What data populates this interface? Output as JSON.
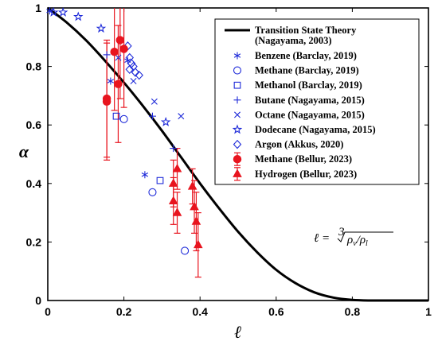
{
  "chart_data": {
    "type": "scatter",
    "xlabel": "ℓ",
    "ylabel": "α",
    "xlim": [
      0,
      1
    ],
    "ylim": [
      0,
      1
    ],
    "xticks": [
      "0",
      "0.2",
      "0.4",
      "0.6",
      "0.8",
      "1"
    ],
    "yticks": [
      "0",
      "0.2",
      "0.4",
      "0.6",
      "0.8",
      "1"
    ],
    "grid": false,
    "legend_position": "top-right",
    "annotation": "ℓ = ∛(ρv/ρl)",
    "curve": {
      "name": "Transition State Theory",
      "name_line2": "(Nagayama, 2003)",
      "color": "#000000",
      "points": [
        [
          0,
          1
        ],
        [
          0.05,
          0.95
        ],
        [
          0.1,
          0.89
        ],
        [
          0.15,
          0.82
        ],
        [
          0.2,
          0.745
        ],
        [
          0.25,
          0.665
        ],
        [
          0.3,
          0.58
        ],
        [
          0.35,
          0.49
        ],
        [
          0.4,
          0.4
        ],
        [
          0.45,
          0.315
        ],
        [
          0.5,
          0.235
        ],
        [
          0.55,
          0.165
        ],
        [
          0.6,
          0.105
        ],
        [
          0.65,
          0.06
        ],
        [
          0.7,
          0.028
        ],
        [
          0.75,
          0.01
        ],
        [
          0.8,
          0.002
        ],
        [
          0.85,
          0
        ],
        [
          0.9,
          0
        ],
        [
          0.95,
          0
        ],
        [
          1,
          0
        ]
      ]
    },
    "series": [
      {
        "name": "Benzene (Barclay, 2019)",
        "marker": "asterisk",
        "color": "#1f2bd9",
        "points": [
          [
            0.005,
            0.99
          ],
          [
            0.165,
            0.75
          ],
          [
            0.21,
            0.82
          ],
          [
            0.255,
            0.43
          ]
        ]
      },
      {
        "name": "Methane (Barclay, 2019)",
        "marker": "circle",
        "color": "#1f2bd9",
        "points": [
          [
            0.2,
            0.62
          ],
          [
            0.275,
            0.37
          ],
          [
            0.36,
            0.17
          ]
        ]
      },
      {
        "name": "Methanol (Barclay, 2019)",
        "marker": "square",
        "color": "#1f2bd9",
        "points": [
          [
            0.18,
            0.63
          ],
          [
            0.295,
            0.41
          ]
        ]
      },
      {
        "name": "Butane (Nagayama, 2015)",
        "marker": "plus",
        "color": "#1f2bd9",
        "points": [
          [
            0.155,
            0.84
          ],
          [
            0.275,
            0.63
          ],
          [
            0.33,
            0.52
          ]
        ]
      },
      {
        "name": "Octane (Nagayama, 2015)",
        "marker": "cross",
        "color": "#1f2bd9",
        "points": [
          [
            0.185,
            0.83
          ],
          [
            0.225,
            0.75
          ],
          [
            0.28,
            0.68
          ],
          [
            0.35,
            0.63
          ]
        ]
      },
      {
        "name": "Dodecane (Nagayama, 2015)",
        "marker": "star",
        "color": "#1f2bd9",
        "points": [
          [
            0.015,
            0.985
          ],
          [
            0.04,
            0.985
          ],
          [
            0.08,
            0.97
          ],
          [
            0.14,
            0.93
          ],
          [
            0.31,
            0.61
          ]
        ]
      },
      {
        "name": "Argon  (Akkus, 2020)",
        "marker": "diamond",
        "color": "#1f2bd9",
        "points": [
          [
            0.21,
            0.87
          ],
          [
            0.215,
            0.83
          ],
          [
            0.22,
            0.81
          ],
          [
            0.225,
            0.8
          ],
          [
            0.23,
            0.78
          ],
          [
            0.24,
            0.77
          ],
          [
            0.215,
            0.79
          ]
        ]
      },
      {
        "name": "Methane (Bellur, 2023)",
        "marker": "filled-circle",
        "color": "#e8141e",
        "points": [
          [
            0.155,
            0.69,
            0.2
          ],
          [
            0.155,
            0.68,
            0.2
          ],
          [
            0.175,
            0.85,
            0.2
          ],
          [
            0.185,
            0.74,
            0.2
          ],
          [
            0.19,
            0.89,
            0.2
          ],
          [
            0.2,
            0.86,
            0.2
          ]
        ]
      },
      {
        "name": "Hydrogen (Bellur, 2023)",
        "marker": "filled-triangle",
        "color": "#e8141e",
        "points": [
          [
            0.33,
            0.4,
            0.08
          ],
          [
            0.33,
            0.34,
            0.08
          ],
          [
            0.34,
            0.45,
            0.07
          ],
          [
            0.34,
            0.3,
            0.07
          ],
          [
            0.38,
            0.39,
            0.06
          ],
          [
            0.385,
            0.32,
            0.09
          ],
          [
            0.39,
            0.27,
            0.1
          ],
          [
            0.395,
            0.19,
            0.11
          ]
        ]
      }
    ]
  }
}
